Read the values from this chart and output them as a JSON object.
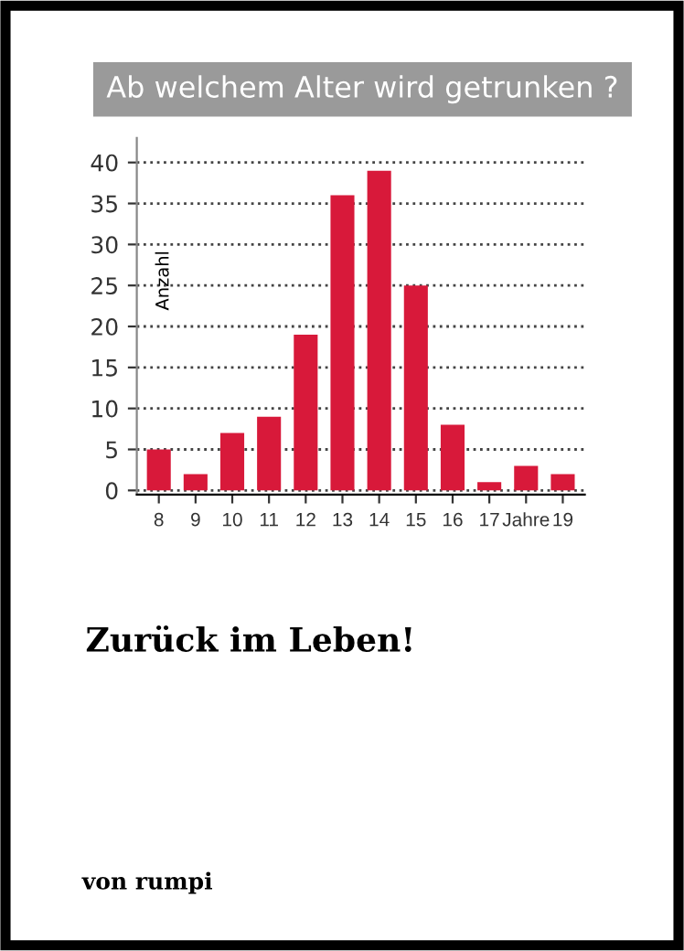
{
  "chart_data": {
    "type": "bar",
    "title": "Ab welchem Alter wird getrunken ?",
    "ylabel": "Anzahl",
    "categories": [
      "8",
      "9",
      "10",
      "11",
      "12",
      "13",
      "14",
      "15",
      "16",
      "17",
      "Jahre",
      "19"
    ],
    "values": [
      5,
      2,
      7,
      9,
      19,
      36,
      39,
      25,
      8,
      1,
      3,
      2
    ],
    "color": "#d8193a",
    "ylim": [
      -0.5,
      43
    ],
    "yticks": [
      0,
      5,
      10,
      15,
      20,
      25,
      30,
      35,
      40
    ],
    "grid": "y",
    "annotations": [
      "Zurück im Leben!",
      "von rumpi"
    ]
  }
}
